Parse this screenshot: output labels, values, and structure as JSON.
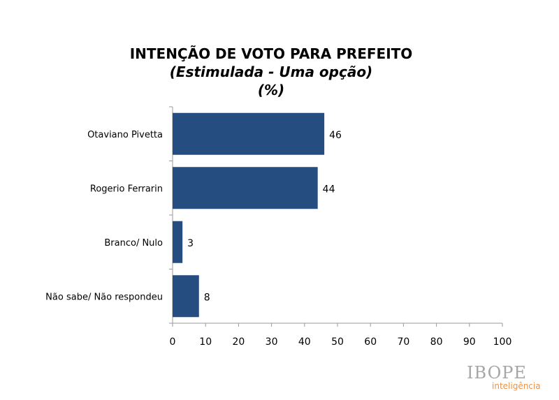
{
  "chart_data": {
    "type": "bar",
    "orientation": "horizontal",
    "title": "INTENÇÃO DE VOTO PARA PREFEITO",
    "subtitle": "(Estimulada - Uma opção)",
    "unit": "(%)",
    "categories": [
      "Otaviano Pivetta",
      "Rogerio Ferrarin",
      "Branco/ Nulo",
      "Não sabe/ Não respondeu"
    ],
    "values": [
      46,
      44,
      3,
      8
    ],
    "xlim": [
      0,
      100
    ],
    "xticks": [
      0,
      10,
      20,
      30,
      40,
      50,
      60,
      70,
      80,
      90,
      100
    ],
    "grid": false,
    "bar_color": "#254d80"
  },
  "logo": {
    "main": "IBOPE",
    "sub": "inteligência",
    "main_color": "#a6a6a6",
    "sub_color": "#e8924a"
  }
}
